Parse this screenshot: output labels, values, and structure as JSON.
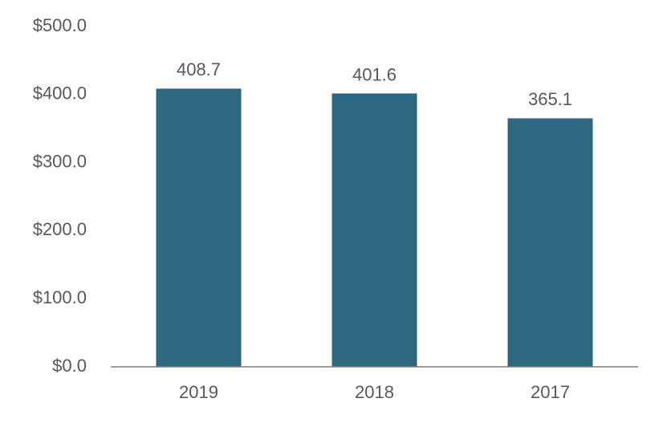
{
  "chart_data": {
    "type": "bar",
    "categories": [
      "2019",
      "2018",
      "2017"
    ],
    "values": [
      408.7,
      401.6,
      365.1
    ],
    "color": "#2e6880",
    "ylim": [
      0,
      500
    ],
    "yticks": [
      {
        "value": 0,
        "label": "$0.0"
      },
      {
        "value": 100,
        "label": "$100.0"
      },
      {
        "value": 200,
        "label": "$200.0"
      },
      {
        "value": 300,
        "label": "$300.0"
      },
      {
        "value": 400,
        "label": "$400.0"
      },
      {
        "value": 500,
        "label": "$500.0"
      }
    ],
    "grid": false
  }
}
